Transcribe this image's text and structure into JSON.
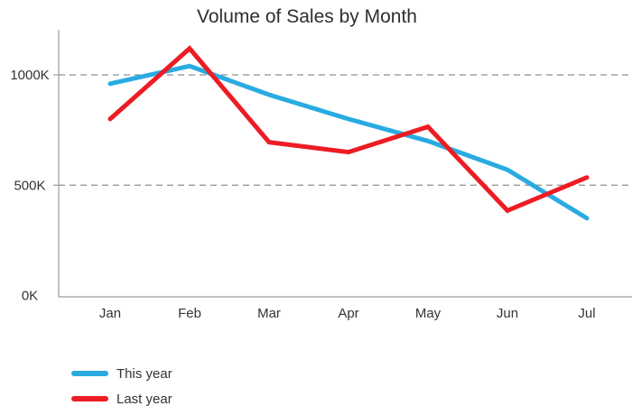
{
  "title": "Volume of Sales by Month",
  "chart_data": {
    "type": "line",
    "title": "Volume of Sales by Month",
    "categories": [
      "Jan",
      "Feb",
      "Mar",
      "Apr",
      "May",
      "Jun",
      "Jul"
    ],
    "series": [
      {
        "name": "This year",
        "color": "#29ABE2",
        "values": [
          960,
          1040,
          910,
          800,
          700,
          570,
          350
        ]
      },
      {
        "name": "Last year",
        "color": "#ED1C24",
        "values": [
          800,
          1120,
          695,
          650,
          765,
          385,
          535
        ]
      }
    ],
    "unit": "K",
    "xlabel": "",
    "ylabel": "",
    "y_ticks": [
      {
        "value": 0,
        "label": "0K"
      },
      {
        "value": 500,
        "label": "500K"
      },
      {
        "value": 1000,
        "label": "1000K"
      }
    ],
    "ylim": [
      0,
      1200
    ],
    "grid": "horizontal-dashed",
    "grid_color": "#8f8f8f",
    "axis_color": "#9c9c9c",
    "legend_position": "bottom-left"
  },
  "legend": {
    "items": [
      {
        "label": "This year",
        "color": "#29ABE2"
      },
      {
        "label": "Last year",
        "color": "#ED1C24"
      }
    ]
  }
}
